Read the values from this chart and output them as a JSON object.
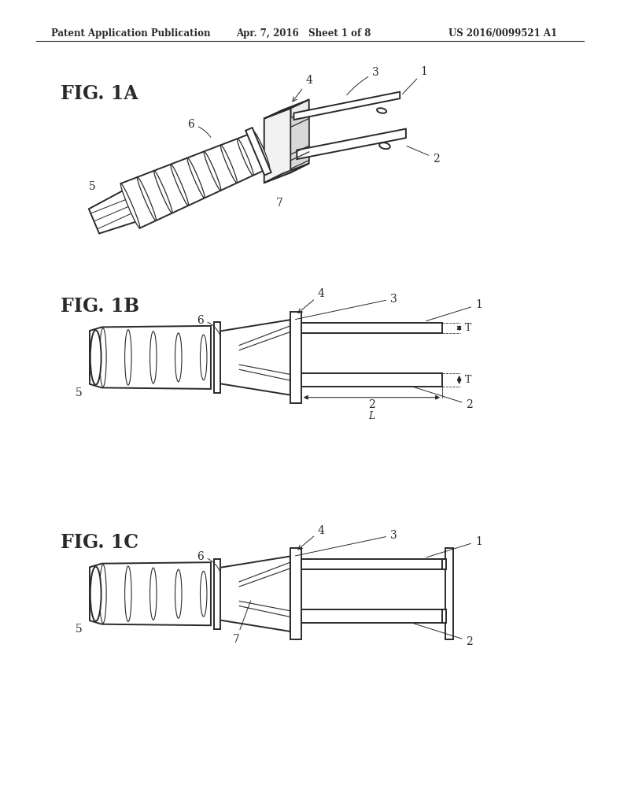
{
  "bg_color": "#ffffff",
  "line_color": "#2a2a2a",
  "header_left": "Patent Application Publication",
  "header_center": "Apr. 7, 2016   Sheet 1 of 8",
  "header_right": "US 2016/0099521 A1",
  "page_width": 10.24,
  "page_height": 13.2
}
